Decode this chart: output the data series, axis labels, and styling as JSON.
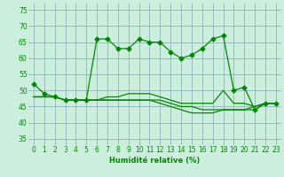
{
  "xlabel": "Humidité relative (%)",
  "bg_color": "#cceedd",
  "grid_color": "#99bbbb",
  "line_color": "#008800",
  "xlim": [
    -0.5,
    23.5
  ],
  "ylim": [
    33,
    77
  ],
  "yticks": [
    35,
    40,
    45,
    50,
    55,
    60,
    65,
    70,
    75
  ],
  "xticks": [
    0,
    1,
    2,
    3,
    4,
    5,
    6,
    7,
    8,
    9,
    10,
    11,
    12,
    13,
    14,
    15,
    16,
    17,
    18,
    19,
    20,
    21,
    22,
    23
  ],
  "line1_x": [
    0,
    1,
    2,
    3,
    4,
    5,
    6,
    7,
    8,
    9,
    10,
    11,
    12,
    13,
    14,
    15,
    16,
    17,
    18,
    19,
    20,
    21,
    22,
    23
  ],
  "line1_y": [
    52,
    49,
    48,
    47,
    47,
    47,
    66,
    66,
    63,
    63,
    66,
    65,
    65,
    62,
    60,
    61,
    63,
    66,
    67,
    50,
    51,
    44,
    46,
    46
  ],
  "line2_x": [
    0,
    1,
    2,
    3,
    4,
    5,
    6,
    7,
    8,
    9,
    10,
    11,
    12,
    13,
    14,
    15,
    16,
    17,
    18,
    19,
    20,
    21,
    22,
    23
  ],
  "line2_y": [
    48,
    48,
    48,
    47,
    47,
    47,
    47,
    48,
    48,
    49,
    49,
    49,
    48,
    47,
    46,
    46,
    46,
    46,
    50,
    46,
    46,
    45,
    46,
    46
  ],
  "line3_x": [
    0,
    1,
    2,
    3,
    4,
    5,
    6,
    7,
    8,
    9,
    10,
    11,
    12,
    13,
    14,
    15,
    16,
    17,
    18,
    19,
    20,
    21,
    22,
    23
  ],
  "line3_y": [
    48,
    48,
    48,
    47,
    47,
    47,
    47,
    47,
    47,
    47,
    47,
    47,
    47,
    46,
    45,
    45,
    44,
    44,
    44,
    44,
    44,
    44,
    46,
    46
  ],
  "line4_x": [
    0,
    1,
    2,
    3,
    4,
    5,
    6,
    7,
    8,
    9,
    10,
    11,
    12,
    13,
    14,
    15,
    16,
    17,
    18,
    19,
    20,
    21,
    22,
    23
  ],
  "line4_y": [
    48,
    48,
    48,
    47,
    47,
    47,
    47,
    47,
    47,
    47,
    47,
    47,
    46,
    45,
    44,
    43,
    43,
    43,
    44,
    44,
    44,
    45,
    46,
    46
  ]
}
